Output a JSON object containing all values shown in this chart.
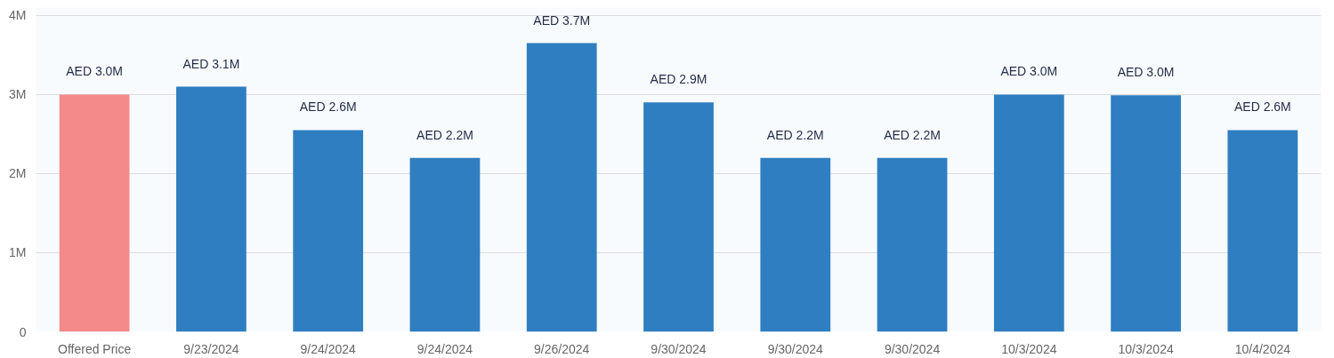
{
  "chart_data": {
    "type": "bar",
    "categories": [
      "Offered Price",
      "9/23/2024",
      "9/24/2024",
      "9/24/2024",
      "9/26/2024",
      "9/30/2024",
      "9/30/2024",
      "9/30/2024",
      "10/3/2024",
      "10/3/2024",
      "10/4/2024"
    ],
    "values": [
      3.0,
      3.1,
      2.55,
      2.2,
      3.65,
      2.9,
      2.2,
      2.2,
      3.0,
      2.99,
      2.55
    ],
    "colors": [
      "#f48a8a",
      "#2f7ec1",
      "#2f7ec1",
      "#2f7ec1",
      "#2f7ec1",
      "#2f7ec1",
      "#2f7ec1",
      "#2f7ec1",
      "#2f7ec1",
      "#2f7ec1",
      "#2f7ec1"
    ],
    "value_labels": [
      "AED 3.0M",
      "AED 3.1M",
      "AED 2.6M",
      "AED 2.2M",
      "AED 3.7M",
      "AED 2.9M",
      "AED 2.2M",
      "AED 2.2M",
      "AED 3.0M",
      "AED 3.0M",
      "AED 2.6M"
    ],
    "ylim": [
      0,
      4.1
    ],
    "yticks": [
      0,
      {
        "value": 1,
        "label": "1M"
      },
      {
        "value": 2,
        "label": "2M"
      },
      {
        "value": 3,
        "label": "3M"
      },
      {
        "value": 4,
        "label": "4M"
      }
    ],
    "grid": "y"
  }
}
